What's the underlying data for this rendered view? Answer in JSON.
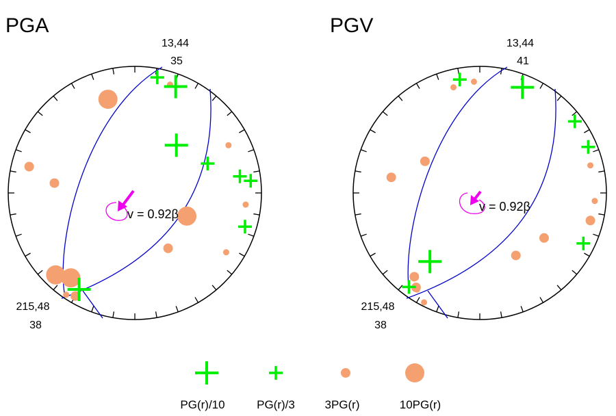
{
  "colors": {
    "circle": "#000000",
    "plane": "#0000cc",
    "plus": "#00ee00",
    "dot": "#f4a070",
    "rupture": "#ee00ee"
  },
  "chart_data": [
    {
      "type": "scatter",
      "title": "PGA",
      "plane1_label": [
        "13,44",
        "35"
      ],
      "plane2_label": [
        "215,48",
        "38"
      ],
      "annotation": "v = 0.92β",
      "points": [
        {
          "az": 41,
          "r": 0.5,
          "kind": "plus",
          "scale": 10
        },
        {
          "az": 21,
          "r": 0.9,
          "kind": "plus",
          "scale": 10
        },
        {
          "az": 210,
          "r": 0.88,
          "kind": "plus",
          "scale": 10
        },
        {
          "az": 68,
          "r": 0.62,
          "kind": "plus",
          "scale": 3
        },
        {
          "az": 81,
          "r": 0.84,
          "kind": "plus",
          "scale": 3
        },
        {
          "az": 84,
          "r": 0.92,
          "kind": "plus",
          "scale": 3
        },
        {
          "az": 107,
          "r": 0.91,
          "kind": "plus",
          "scale": 3
        },
        {
          "az": 11,
          "r": 0.93,
          "kind": "plus",
          "scale": 3
        },
        {
          "az": 63,
          "r": 0.83,
          "kind": "dot",
          "scale": 0.3
        },
        {
          "az": 123,
          "r": 0.86,
          "kind": "dot",
          "scale": 0.3
        },
        {
          "az": 18,
          "r": 0.9,
          "kind": "dot",
          "scale": 0.3
        },
        {
          "az": 214,
          "r": 0.97,
          "kind": "dot",
          "scale": 0.3
        },
        {
          "az": 96,
          "r": 0.88,
          "kind": "dot",
          "scale": 0.3
        },
        {
          "az": 344,
          "r": 0.77,
          "kind": "dot",
          "scale": 10
        },
        {
          "az": 114,
          "r": 0.45,
          "kind": "dot",
          "scale": 10
        },
        {
          "az": 217,
          "r": 0.84,
          "kind": "dot",
          "scale": 10
        },
        {
          "az": 224,
          "r": 0.9,
          "kind": "dot",
          "scale": 10
        },
        {
          "az": 149,
          "r": 0.51,
          "kind": "dot",
          "scale": 3
        },
        {
          "az": 277,
          "r": 0.64,
          "kind": "dot",
          "scale": 3
        },
        {
          "az": 284,
          "r": 0.86,
          "kind": "dot",
          "scale": 3
        },
        {
          "az": 210,
          "r": 0.94,
          "kind": "dot",
          "scale": 3
        }
      ]
    },
    {
      "type": "scatter",
      "title": "PGV",
      "plane1_label": [
        "13,44",
        "41"
      ],
      "plane2_label": [
        "215,48",
        "38"
      ],
      "annotation": "v = 0.92β",
      "points": [
        {
          "az": 22,
          "r": 0.9,
          "kind": "plus",
          "scale": 10
        },
        {
          "az": 216,
          "r": 0.67,
          "kind": "plus",
          "scale": 10
        },
        {
          "az": 53,
          "r": 0.94,
          "kind": "plus",
          "scale": 3
        },
        {
          "az": 67,
          "r": 0.93,
          "kind": "plus",
          "scale": 3
        },
        {
          "az": 116,
          "r": 0.91,
          "kind": "plus",
          "scale": 3
        },
        {
          "az": 350,
          "r": 0.91,
          "kind": "plus",
          "scale": 3
        },
        {
          "az": 217,
          "r": 0.93,
          "kind": "plus",
          "scale": 3
        },
        {
          "az": 76,
          "r": 0.9,
          "kind": "dot",
          "scale": 0.3
        },
        {
          "az": 94,
          "r": 0.91,
          "kind": "dot",
          "scale": 0.3
        },
        {
          "az": 357,
          "r": 0.88,
          "kind": "dot",
          "scale": 0.3
        },
        {
          "az": 207,
          "r": 0.97,
          "kind": "dot",
          "scale": 0.3
        },
        {
          "az": 213,
          "r": 0.91,
          "kind": "dot",
          "scale": 0.3
        },
        {
          "az": 346,
          "r": 0.86,
          "kind": "dot",
          "scale": 0.3
        },
        {
          "az": 300,
          "r": 0.5,
          "kind": "dot",
          "scale": 3
        },
        {
          "az": 280,
          "r": 0.71,
          "kind": "dot",
          "scale": 3
        },
        {
          "az": 125,
          "r": 0.62,
          "kind": "dot",
          "scale": 3
        },
        {
          "az": 150,
          "r": 0.57,
          "kind": "dot",
          "scale": 3
        },
        {
          "az": 218,
          "r": 0.84,
          "kind": "dot",
          "scale": 3
        },
        {
          "az": 214,
          "r": 0.9,
          "kind": "dot",
          "scale": 3
        },
        {
          "az": 104,
          "r": 0.9,
          "kind": "dot",
          "scale": 3
        }
      ]
    }
  ],
  "legend": [
    {
      "kind": "plus",
      "scale": 10,
      "label": "PG(r)/10"
    },
    {
      "kind": "plus",
      "scale": 3,
      "label": "PG(r)/3"
    },
    {
      "kind": "dot",
      "scale": 3,
      "label": "3PG(r)"
    },
    {
      "kind": "dot",
      "scale": 10,
      "label": "10PG(r)"
    }
  ]
}
